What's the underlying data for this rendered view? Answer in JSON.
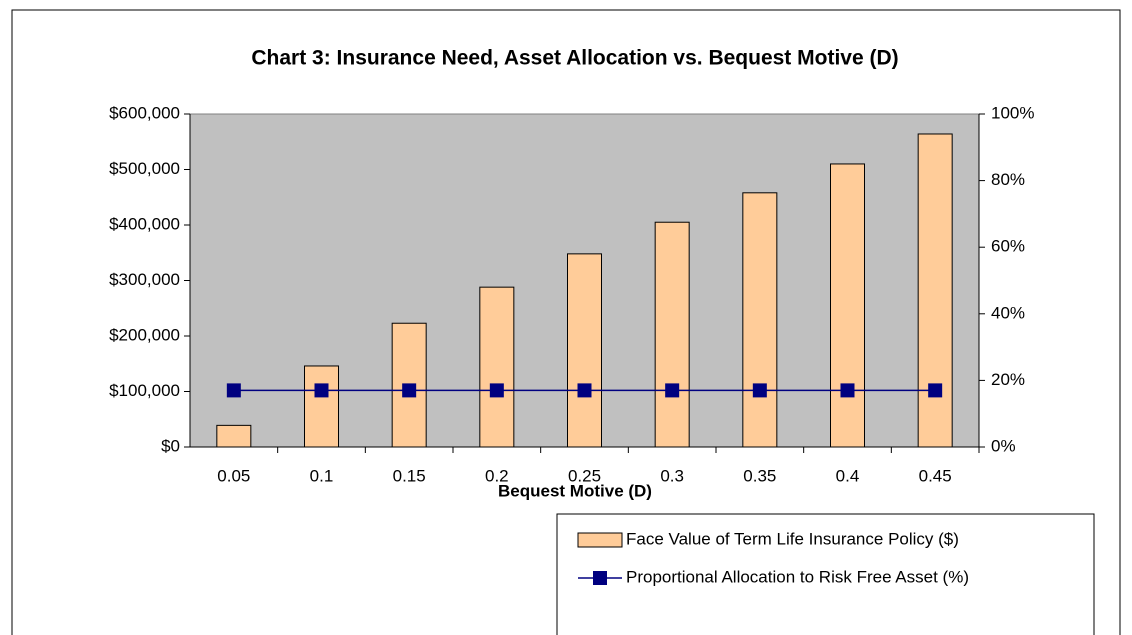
{
  "chart_data": {
    "type": "bar_line",
    "title": "Chart 3: Insurance Need, Asset Allocation vs. Bequest Motive (D)",
    "x_label": "Bequest Motive (D)",
    "categories": [
      "0.05",
      "0.1",
      "0.15",
      "0.2",
      "0.25",
      "0.3",
      "0.35",
      "0.4",
      "0.45"
    ],
    "series": [
      {
        "name": "Face Value of Term Life Insurance Policy ($)",
        "type": "bar",
        "axis": "y",
        "color": "#ffcc99",
        "values": [
          39000,
          146000,
          223000,
          288000,
          348000,
          405000,
          458000,
          510000,
          564000
        ]
      },
      {
        "name": "Proportional Allocation to Risk Free Asset (%)",
        "type": "line",
        "axis": "y2",
        "color": "#000080",
        "values": [
          17,
          17,
          17,
          17,
          17,
          17,
          17,
          17,
          17
        ]
      }
    ],
    "ylim": [
      0,
      600000
    ],
    "yticks": [
      {
        "value": 0,
        "label": "$0"
      },
      {
        "value": 100000,
        "label": "$100,000"
      },
      {
        "value": 200000,
        "label": "$200,000"
      },
      {
        "value": 300000,
        "label": "$300,000"
      },
      {
        "value": 400000,
        "label": "$400,000"
      },
      {
        "value": 500000,
        "label": "$500,000"
      },
      {
        "value": 600000,
        "label": "$600,000"
      }
    ],
    "y2lim": [
      0,
      100
    ],
    "y2ticks": [
      {
        "value": 0,
        "label": "0%"
      },
      {
        "value": 20,
        "label": "20%"
      },
      {
        "value": 40,
        "label": "40%"
      },
      {
        "value": 60,
        "label": "60%"
      },
      {
        "value": 80,
        "label": "80%"
      },
      {
        "value": 100,
        "label": "100%"
      }
    ],
    "legend": "bottom-right"
  }
}
